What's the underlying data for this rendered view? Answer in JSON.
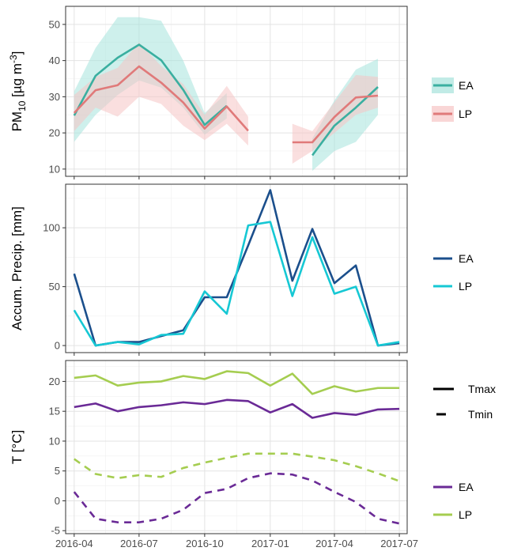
{
  "chart_data": [
    {
      "type": "line",
      "ylabel_main": "PM",
      "ylabel_sub": "10",
      "ylabel_rest": " [µg m",
      "ylabel_sup": "-3",
      "ylabel_end": "]",
      "ylim": [
        8,
        55
      ],
      "yticks": [
        10,
        20,
        30,
        40,
        50
      ],
      "grid": true,
      "legend_position": "right",
      "series": [
        {
          "name": "EA",
          "color": "#3aafa0",
          "band_color": "#a6e3dc",
          "x": [
            "2016-04",
            "2016-05",
            "2016-06",
            "2016-07",
            "2016-08",
            "2016-09",
            "2016-10",
            "2016-11",
            "2017-03",
            "2017-04",
            "2017-05",
            "2017-06"
          ],
          "segments": [
            {
              "values": [
                24.8,
                35.8,
                40.8,
                44.4,
                40.1,
                31.9,
                22.2,
                27.5
              ],
              "lower": [
                17.5,
                25.0,
                30.5,
                34.5,
                32.5,
                27.0,
                19.5,
                24.0
              ],
              "upper": [
                31.5,
                43.5,
                52.0,
                52.0,
                51.0,
                40.0,
                25.5,
                31.0
              ]
            },
            {
              "values": [
                13.8,
                22.0,
                27.0,
                32.7
              ],
              "lower": [
                9.5,
                15.0,
                17.5,
                25.0
              ],
              "upper": [
                18.5,
                29.0,
                37.5,
                40.5
              ]
            }
          ]
        },
        {
          "name": "LP",
          "color": "#e07a7a",
          "band_color": "#f6c4c4",
          "x": [
            "2016-04",
            "2016-05",
            "2016-06",
            "2016-07",
            "2016-08",
            "2016-09",
            "2016-10",
            "2016-11",
            "2016-12",
            "2017-02",
            "2017-03",
            "2017-04",
            "2017-05",
            "2017-06"
          ],
          "segments": [
            {
              "values": [
                25.5,
                31.8,
                33.2,
                38.4,
                33.9,
                28.4,
                21.2,
                27.3,
                20.6
              ],
              "lower": [
                20.5,
                27.0,
                24.5,
                30.0,
                28.0,
                22.0,
                18.0,
                22.5,
                16.5
              ],
              "upper": [
                30.5,
                35.5,
                38.0,
                45.0,
                38.5,
                33.5,
                25.0,
                33.0,
                24.5
              ]
            },
            {
              "values": [
                17.4,
                17.4,
                24.4,
                29.8,
                30.3
              ],
              "lower": [
                11.5,
                15.0,
                20.0,
                25.0,
                27.0
              ],
              "upper": [
                22.5,
                20.5,
                28.5,
                36.0,
                35.5
              ]
            }
          ]
        }
      ]
    },
    {
      "type": "line",
      "ylabel": "Accum. Precip. [mm]",
      "ylim": [
        -6,
        137
      ],
      "yticks": [
        0,
        50,
        100
      ],
      "grid": true,
      "legend_position": "right",
      "series": [
        {
          "name": "EA",
          "color": "#1b4f8c",
          "x": [
            "2016-04",
            "2016-05",
            "2016-06",
            "2016-07",
            "2016-08",
            "2016-09",
            "2016-10",
            "2016-11",
            "2016-12",
            "2017-01",
            "2017-02",
            "2017-03",
            "2017-04",
            "2017-05",
            "2017-06",
            "2017-07"
          ],
          "values": [
            61,
            0,
            3,
            3,
            8,
            13,
            41,
            41,
            85,
            132,
            55,
            99,
            53,
            68,
            0,
            2
          ]
        },
        {
          "name": "LP",
          "color": "#16c8d4",
          "x": [
            "2016-04",
            "2016-05",
            "2016-06",
            "2016-07",
            "2016-08",
            "2016-09",
            "2016-10",
            "2016-11",
            "2016-12",
            "2017-01",
            "2017-02",
            "2017-03",
            "2017-04",
            "2017-05",
            "2017-06",
            "2017-07"
          ],
          "values": [
            30,
            0,
            3,
            1,
            9,
            10,
            46,
            27,
            102,
            105,
            42,
            92,
            44,
            50,
            0,
            3
          ]
        }
      ]
    },
    {
      "type": "line",
      "ylabel": "T [°C]",
      "ylim": [
        -5.5,
        23.5
      ],
      "yticks": [
        -5,
        0,
        5,
        10,
        15,
        20
      ],
      "xticks": [
        "2016-04",
        "2016-07",
        "2016-10",
        "2017-01",
        "2017-04",
        "2017-07"
      ],
      "grid": true,
      "legend_position": "right",
      "linetype_legend": [
        {
          "name": "Tmax",
          "dash": false
        },
        {
          "name": "Tmin",
          "dash": true
        }
      ],
      "series": [
        {
          "name": "EA",
          "variable": "Tmax",
          "color": "#6a2a96",
          "dash": false,
          "x": [
            "2016-04",
            "2016-05",
            "2016-06",
            "2016-07",
            "2016-08",
            "2016-09",
            "2016-10",
            "2016-11",
            "2016-12",
            "2017-01",
            "2017-02",
            "2017-03",
            "2017-04",
            "2017-05",
            "2017-06",
            "2017-07"
          ],
          "values": [
            15.7,
            16.3,
            15.0,
            15.7,
            16.0,
            16.5,
            16.2,
            16.9,
            16.7,
            14.8,
            16.2,
            13.9,
            14.7,
            14.4,
            15.3,
            15.4
          ]
        },
        {
          "name": "LP",
          "variable": "Tmax",
          "color": "#a5cd50",
          "dash": false,
          "x": [
            "2016-04",
            "2016-05",
            "2016-06",
            "2016-07",
            "2016-08",
            "2016-09",
            "2016-10",
            "2016-11",
            "2016-12",
            "2017-01",
            "2017-02",
            "2017-03",
            "2017-04",
            "2017-05",
            "2017-06",
            "2017-07"
          ],
          "values": [
            20.6,
            21.0,
            19.3,
            19.8,
            20.0,
            20.9,
            20.4,
            21.7,
            21.4,
            19.3,
            21.3,
            17.9,
            19.2,
            18.3,
            18.9,
            18.9
          ]
        },
        {
          "name": "EA",
          "variable": "Tmin",
          "color": "#6a2a96",
          "dash": true,
          "x": [
            "2016-04",
            "2016-05",
            "2016-06",
            "2016-07",
            "2016-08",
            "2016-09",
            "2016-10",
            "2016-11",
            "2016-12",
            "2017-01",
            "2017-02",
            "2017-03",
            "2017-04",
            "2017-05",
            "2017-06",
            "2017-07"
          ],
          "values": [
            1.5,
            -3.0,
            -3.6,
            -3.6,
            -3.0,
            -1.5,
            1.3,
            2.0,
            3.8,
            4.6,
            4.4,
            3.4,
            1.5,
            -0.2,
            -3.0,
            -3.8
          ]
        },
        {
          "name": "LP",
          "variable": "Tmin",
          "color": "#a5cd50",
          "dash": true,
          "x": [
            "2016-04",
            "2016-05",
            "2016-06",
            "2016-07",
            "2016-08",
            "2016-09",
            "2016-10",
            "2016-11",
            "2016-12",
            "2017-01",
            "2017-02",
            "2017-03",
            "2017-04",
            "2017-05",
            "2017-06",
            "2017-07"
          ],
          "values": [
            7.0,
            4.5,
            3.8,
            4.3,
            4.0,
            5.5,
            6.4,
            7.2,
            7.9,
            7.9,
            7.9,
            7.4,
            6.8,
            5.8,
            4.6,
            3.3
          ]
        }
      ]
    }
  ]
}
